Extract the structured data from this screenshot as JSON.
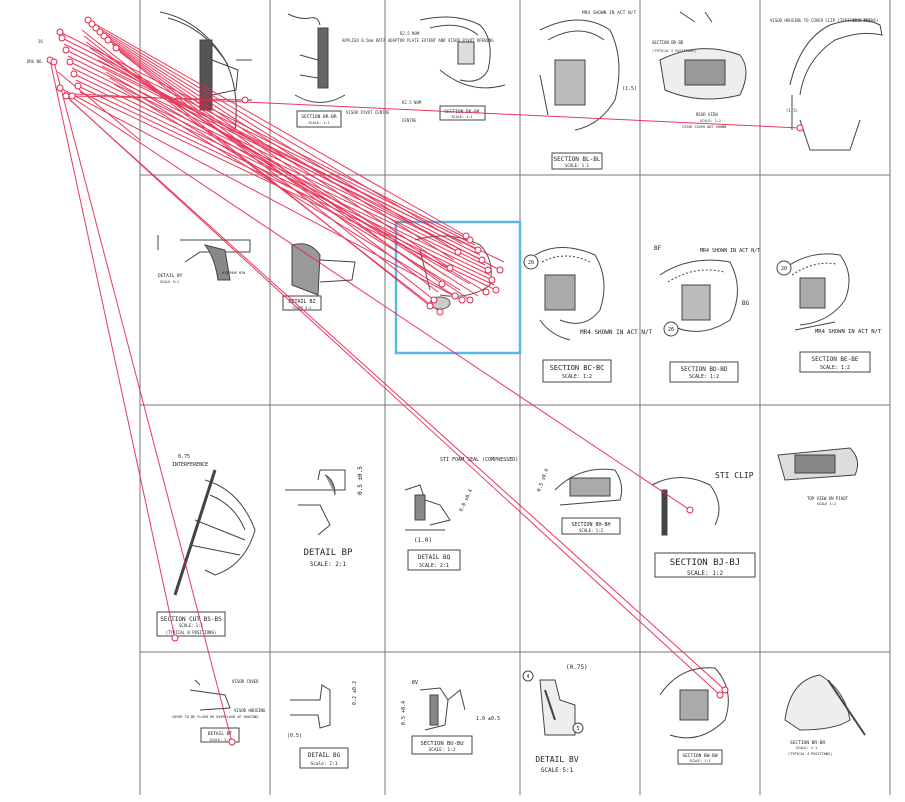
{
  "cells": [
    {
      "key": "r1c1",
      "title": "",
      "scale": ""
    },
    {
      "key": "r1c2",
      "title": "SECTION BR-BR",
      "scale": "SCALE: 1:1",
      "note": "APPLIED 0.5mm DATA ADAPTOR PLATE EXTENT AND VISOR PIVOT OPENING",
      "note2": "VISOR PIVOT CENTRE"
    },
    {
      "key": "r1c3",
      "title": "SECTION BK-BK",
      "scale": "SCALE: 1:1",
      "note": "R2.5 NOM",
      "note2": "R2.5 NOM",
      "note3": "CENTRE"
    },
    {
      "key": "r1c4",
      "title": "SECTION BL-BL",
      "scale": "SCALE: 1:1",
      "note": "MR4 SHOWN IN ACT N/T",
      "dim": "(1.5)"
    },
    {
      "key": "r1c5",
      "title": "SECTION BD-BD",
      "scale": "SCALE: 1:2",
      "note": "(TYPICAL 3 POSITIONS)",
      "note2": "REAR VIEW",
      "note3": "VISOR COVER NOT SHOWN"
    },
    {
      "key": "r1c6",
      "title": "",
      "scale": "",
      "note": "VISOR HOUSING TO COVER CLIP (TYPICAL 3 POSNS)",
      "dim": "(R0.25)",
      "dim2": "(1.5)"
    },
    {
      "key": "r2c1",
      "title": "DETAIL BY",
      "scale": "SCALE 5:1",
      "note": "MINIMUM MIN"
    },
    {
      "key": "r2c2",
      "title": "DETAIL BZ",
      "scale": "SCALE 5:1"
    },
    {
      "key": "r2c4",
      "title": "SECTION BC-BC",
      "scale": "SCALE: 1:2",
      "note": "MR4 SHOWN IN ACT N/T",
      "callout": "20"
    },
    {
      "key": "r2c5",
      "title": "SECTION BD-BD",
      "scale": "SCALE: 1:2",
      "note": "MR4 SHOWN IN ACT N/T",
      "label1": "BF",
      "label2": "BG",
      "callout": "26"
    },
    {
      "key": "r2c6",
      "title": "SECTION BE-BE",
      "scale": "SCALE: 1:2",
      "note": "MR4 SHOWN IN ACT N/T",
      "callout": "20"
    },
    {
      "key": "r3c1",
      "title": "SECTION CUT BS-BS",
      "scale": "SCALE: 1:1",
      "note": "(TYPICAL 8 POSITIONS)",
      "dim": "0.75",
      "dim2": "INTERFERENCE"
    },
    {
      "key": "r3c2",
      "title": "DETAIL BP",
      "scale": "SCALE: 2:1",
      "dim": "0.5 ±0.5"
    },
    {
      "key": "r3c3",
      "title": "DETAIL BQ",
      "scale": "SCALE: 2:1",
      "note": "STI FOAM SEAL (COMPRESSED)",
      "dim": "(1.0)",
      "dim2": "0.8 ±0.4"
    },
    {
      "key": "r3c4",
      "title": "SECTION BH-BH",
      "scale": "SCALE: 1:2",
      "dim": "0.5 ±0.4"
    },
    {
      "key": "r3c5",
      "title": "SECTION BJ-BJ",
      "scale": "SCALE: 1:2",
      "note": "STI CLIP"
    },
    {
      "key": "r3c6",
      "title": "",
      "scale": "",
      "note": "TOP VIEW ON PIVOT",
      "note2": "SCALE 1:2"
    },
    {
      "key": "r4c1",
      "title": "DETAIL BF",
      "scale": "SCALE: 2:1",
      "note": "COVER TO BE FLUSH OR OVERFLUSH OF HOUSING",
      "note2": "VISOR COVER",
      "note3": "VISOR HOUSING"
    },
    {
      "key": "r4c2",
      "title": "DETAIL BG",
      "scale": "Scale: 2:1",
      "dim": "(0.5)",
      "dim2": "0.2 ±0.2"
    },
    {
      "key": "r4c3",
      "title": "SECTION BU-BU",
      "scale": "SCALE: 1:2",
      "label1": "BV",
      "dim": "0.5 +0.4",
      "dim2": "1.0 ±0.5"
    },
    {
      "key": "r4c4",
      "title": "DETAIL BV",
      "scale": "SCALE 5:1",
      "dim": "(0.75)",
      "callout": "4",
      "callout2": "5"
    },
    {
      "key": "r4c5",
      "title": "SECTION BW-BW",
      "scale": "SCALE: 1:1"
    },
    {
      "key": "r4c6",
      "title": "SECTION BR-BR",
      "scale": "SCALE: 1:1",
      "note": "(TYPICAL 4 POSITIONS)"
    }
  ],
  "colors": {
    "grid": "#777777",
    "ink": "#222222",
    "annotation": "#e8234a",
    "highlight": "#5bb7e6"
  }
}
